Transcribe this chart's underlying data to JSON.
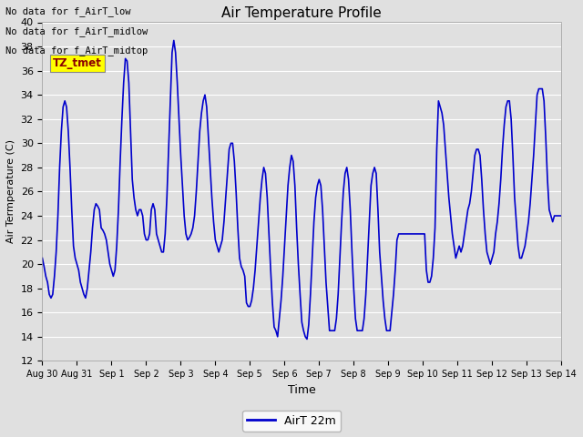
{
  "title": "Air Temperature Profile",
  "xlabel": "Time",
  "ylabel": "Air Termperature (C)",
  "line_color": "#0000CC",
  "line_width": 1.2,
  "ylim": [
    12,
    40
  ],
  "yticks": [
    12,
    14,
    16,
    18,
    20,
    22,
    24,
    26,
    28,
    30,
    32,
    34,
    36,
    38,
    40
  ],
  "bg_color": "#E0E0E0",
  "annotations": [
    "No data for f_AirT_low",
    "No data for f_AirT_midlow",
    "No data for f_AirT_midtop"
  ],
  "tz_label": "TZ_tmet",
  "legend_label": "AirT 22m",
  "x_tick_labels": [
    "Aug 30",
    "Aug 31",
    "Sep 1",
    "Sep 2",
    "Sep 3",
    "Sep 4",
    "Sep 5",
    "Sep 6",
    "Sep 7",
    "Sep 8",
    "Sep 9",
    "Sep 10",
    "Sep 11",
    "Sep 12",
    "Sep 13",
    "Sep 14"
  ],
  "temperature_data": [
    20.5,
    19.8,
    19.0,
    18.5,
    17.5,
    17.2,
    17.5,
    19.0,
    21.0,
    24.0,
    28.0,
    31.0,
    33.0,
    33.5,
    33.0,
    31.0,
    28.0,
    24.5,
    21.5,
    20.5,
    20.0,
    19.5,
    18.5,
    18.0,
    17.5,
    17.2,
    18.0,
    19.5,
    21.0,
    23.0,
    24.5,
    25.0,
    24.8,
    24.5,
    23.0,
    22.8,
    22.5,
    22.0,
    21.0,
    20.0,
    19.5,
    19.0,
    19.5,
    21.5,
    24.5,
    28.5,
    32.0,
    35.0,
    37.0,
    36.8,
    35.0,
    31.0,
    27.0,
    25.5,
    24.5,
    24.0,
    24.5,
    24.5,
    24.0,
    22.5,
    22.0,
    22.0,
    22.5,
    24.5,
    25.0,
    24.5,
    22.5,
    22.0,
    21.5,
    21.0,
    21.0,
    22.5,
    25.5,
    29.5,
    33.5,
    37.5,
    38.5,
    37.5,
    35.0,
    32.0,
    29.0,
    26.5,
    24.0,
    22.5,
    22.0,
    22.2,
    22.5,
    23.0,
    24.0,
    26.0,
    28.5,
    31.0,
    32.5,
    33.5,
    34.0,
    33.0,
    30.5,
    28.0,
    25.5,
    23.5,
    22.0,
    21.5,
    21.0,
    21.5,
    22.0,
    23.5,
    25.5,
    27.5,
    29.5,
    30.0,
    30.0,
    28.5,
    26.0,
    23.0,
    20.5,
    19.8,
    19.5,
    19.0,
    16.8,
    16.5,
    16.5,
    17.0,
    18.0,
    19.5,
    21.5,
    23.5,
    25.5,
    27.0,
    28.0,
    27.5,
    25.5,
    22.5,
    19.5,
    16.8,
    14.8,
    14.5,
    14.0,
    15.5,
    17.0,
    19.0,
    21.5,
    24.0,
    26.5,
    28.0,
    29.0,
    28.5,
    26.5,
    23.0,
    20.0,
    17.5,
    15.2,
    14.5,
    14.0,
    13.8,
    15.0,
    17.5,
    20.5,
    23.5,
    25.5,
    26.5,
    27.0,
    26.5,
    24.5,
    21.5,
    18.5,
    16.5,
    14.5,
    14.5,
    14.5,
    14.5,
    15.5,
    17.5,
    20.5,
    23.5,
    26.0,
    27.5,
    28.0,
    27.0,
    24.5,
    21.0,
    18.0,
    15.5,
    14.5,
    14.5,
    14.5,
    14.5,
    15.5,
    17.5,
    20.5,
    23.5,
    26.5,
    27.5,
    28.0,
    27.5,
    24.5,
    21.0,
    19.0,
    17.0,
    15.5,
    14.5,
    14.5,
    14.5,
    16.0,
    17.5,
    19.5,
    22.0,
    22.5,
    22.5,
    22.5,
    22.5,
    22.5,
    22.5,
    22.5,
    22.5,
    22.5,
    22.5,
    22.5,
    22.5,
    22.5,
    22.5,
    22.5,
    22.5,
    19.5,
    18.5,
    18.5,
    19.0,
    20.5,
    23.0,
    29.5,
    33.5,
    33.0,
    32.5,
    31.5,
    29.5,
    27.5,
    25.5,
    24.0,
    22.5,
    21.5,
    20.5,
    21.0,
    21.5,
    21.0,
    21.5,
    22.5,
    23.5,
    24.5,
    25.0,
    26.0,
    27.5,
    29.0,
    29.5,
    29.5,
    29.0,
    27.0,
    24.5,
    22.5,
    21.0,
    20.5,
    20.0,
    20.5,
    21.0,
    22.5,
    23.5,
    25.0,
    27.0,
    29.5,
    31.5,
    33.0,
    33.5,
    33.5,
    32.0,
    29.0,
    25.5,
    23.5,
    21.5,
    20.5,
    20.5,
    21.0,
    21.5,
    22.5,
    23.5,
    25.0,
    27.0,
    29.0,
    31.5,
    34.0,
    34.5,
    34.5,
    34.5,
    33.5,
    30.5,
    27.0,
    24.5,
    24.0,
    23.5,
    24.0,
    24.0,
    24.0,
    24.0,
    24.0
  ]
}
